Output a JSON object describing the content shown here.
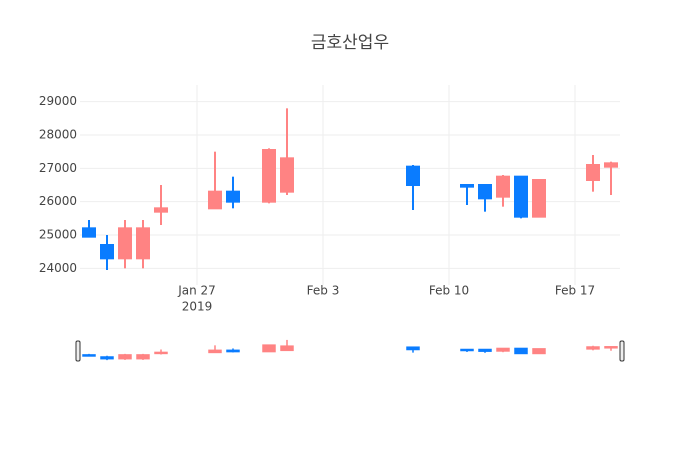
{
  "chart_data": {
    "type": "candlestick",
    "title": "금호산업우",
    "x": [
      "2019-01-21",
      "2019-01-22",
      "2019-01-23",
      "2019-01-24",
      "2019-01-25",
      "2019-01-28",
      "2019-01-29",
      "2019-01-31",
      "2019-02-01",
      "2019-02-08",
      "2019-02-11",
      "2019-02-12",
      "2019-02-13",
      "2019-02-14",
      "2019-02-15",
      "2019-02-18",
      "2019-02-19"
    ],
    "open": [
      25200,
      24700,
      24300,
      24300,
      25700,
      25800,
      26300,
      26000,
      26300,
      27050,
      26500,
      26500,
      26150,
      26750,
      25550,
      26650,
      27050
    ],
    "high": [
      25450,
      25000,
      25450,
      25450,
      26500,
      27500,
      26750,
      27600,
      28800,
      27100,
      26500,
      26500,
      26800,
      26750,
      26650,
      27400,
      27200
    ],
    "low": [
      24950,
      23950,
      24000,
      24000,
      25300,
      25800,
      25800,
      25950,
      26200,
      25750,
      25900,
      25700,
      25850,
      25500,
      25550,
      26300,
      26200
    ],
    "close": [
      24950,
      24300,
      25200,
      25200,
      25800,
      26300,
      26000,
      27550,
      27300,
      26500,
      26450,
      26100,
      26750,
      25550,
      26650,
      27100,
      27150
    ],
    "increasing_color": "#ff8383",
    "decreasing_color": "#0a7cff",
    "xlim": [
      "2019-01-20 12:00",
      "2019-02-19 12:00"
    ],
    "xticks": [
      {
        "value": "2019-01-27",
        "label": "Jan 27"
      },
      {
        "value": "2019-02-03",
        "label": "Feb 3"
      },
      {
        "value": "2019-02-10",
        "label": "Feb 10"
      },
      {
        "value": "2019-02-17",
        "label": "Feb 17"
      }
    ],
    "x_year": "2019",
    "ylim": [
      23500,
      29500
    ],
    "yticks": [
      24000,
      25000,
      26000,
      27000,
      28000,
      29000
    ],
    "grid": true,
    "rangeslider": true
  }
}
